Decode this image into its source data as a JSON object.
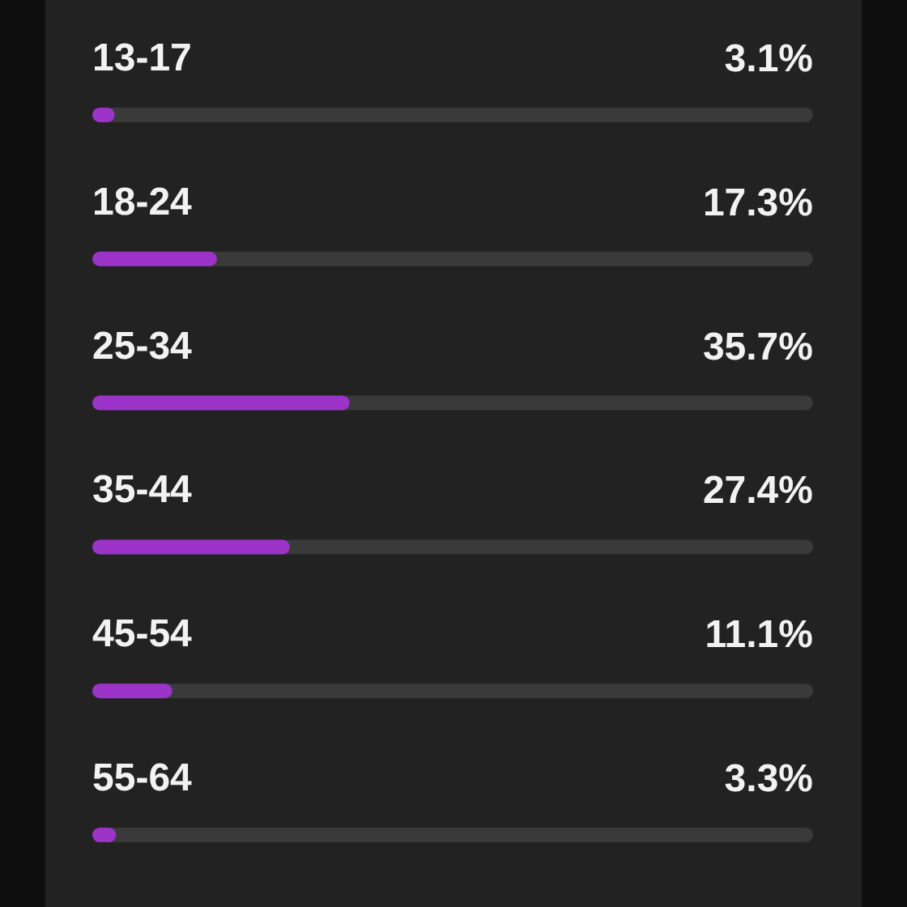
{
  "chart_data": {
    "type": "bar",
    "orientation": "horizontal",
    "categories": [
      "13-17",
      "18-24",
      "25-34",
      "35-44",
      "45-54",
      "55-64"
    ],
    "values": [
      3.1,
      17.3,
      35.7,
      27.4,
      11.1,
      3.3
    ],
    "value_labels": [
      "3.1%",
      "17.3%",
      "35.7%",
      "27.4%",
      "11.1%",
      "3.3%"
    ],
    "color": "#9b33c9",
    "xlim": [
      0,
      100
    ],
    "tick_labels": "y"
  }
}
